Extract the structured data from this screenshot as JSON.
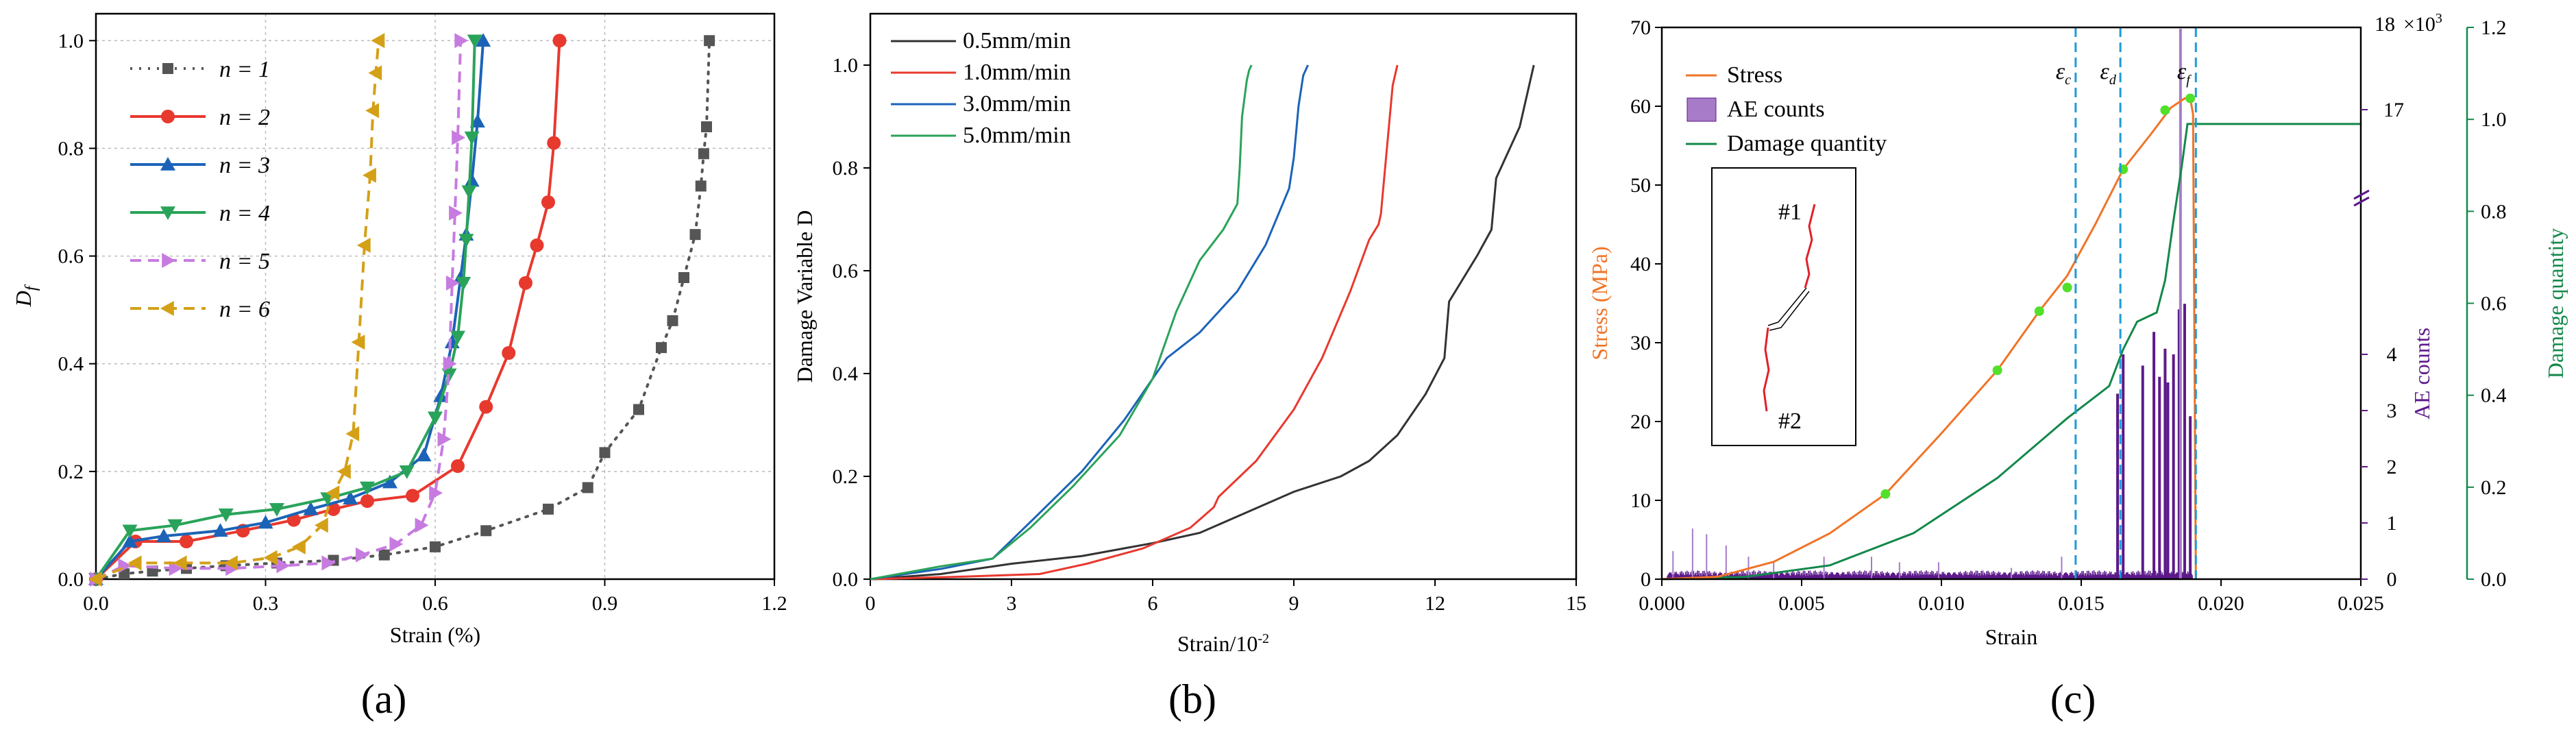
{
  "panel_labels": {
    "a": "(a)",
    "b": "(b)",
    "c": "(c)"
  },
  "chart_data": [
    {
      "id": "a",
      "type": "line",
      "xlabel": "Strain (%)",
      "ylabel": "D",
      "ylabel_sub": "f",
      "xlim": [
        0,
        1.2
      ],
      "ylim": [
        0,
        1.05
      ],
      "xticks": [
        "0.0",
        "0.3",
        "0.6",
        "0.9",
        "1.2"
      ],
      "yticks": [
        "0.0",
        "0.2",
        "0.4",
        "0.6",
        "0.8",
        "1.0"
      ],
      "grid": true,
      "legend_position": "top-left",
      "series": [
        {
          "name": "n = 1",
          "color": "#555555",
          "dash": "dot",
          "marker": "square",
          "x": [
            0.0,
            0.05,
            0.1,
            0.16,
            0.23,
            0.32,
            0.42,
            0.51,
            0.6,
            0.69,
            0.8,
            0.87,
            0.9,
            0.96,
            1.0,
            1.02,
            1.04,
            1.06,
            1.07,
            1.075,
            1.08,
            1.085
          ],
          "y": [
            0.0,
            0.01,
            0.015,
            0.02,
            0.025,
            0.03,
            0.035,
            0.045,
            0.06,
            0.09,
            0.13,
            0.17,
            0.235,
            0.315,
            0.43,
            0.48,
            0.56,
            0.64,
            0.73,
            0.79,
            0.84,
            1.0
          ]
        },
        {
          "name": "n = 2",
          "color": "#e8392f",
          "dash": "solid",
          "marker": "circle",
          "x": [
            0.0,
            0.07,
            0.16,
            0.26,
            0.35,
            0.42,
            0.48,
            0.56,
            0.64,
            0.69,
            0.73,
            0.76,
            0.78,
            0.8,
            0.81,
            0.82
          ],
          "y": [
            0.0,
            0.07,
            0.07,
            0.09,
            0.11,
            0.13,
            0.145,
            0.155,
            0.21,
            0.32,
            0.42,
            0.55,
            0.62,
            0.7,
            0.81,
            1.0
          ]
        },
        {
          "name": "n = 3",
          "color": "#1c63b8",
          "dash": "solid",
          "marker": "triangle-up",
          "x": [
            0.0,
            0.06,
            0.12,
            0.22,
            0.3,
            0.38,
            0.45,
            0.52,
            0.58,
            0.61,
            0.63,
            0.645,
            0.655,
            0.665,
            0.675,
            0.685
          ],
          "y": [
            0.0,
            0.07,
            0.08,
            0.09,
            0.105,
            0.13,
            0.15,
            0.18,
            0.23,
            0.34,
            0.44,
            0.56,
            0.64,
            0.74,
            0.85,
            1.0
          ]
        },
        {
          "name": "n = 4",
          "color": "#2aa35a",
          "dash": "solid",
          "marker": "triangle-down",
          "x": [
            0.0,
            0.06,
            0.14,
            0.23,
            0.32,
            0.41,
            0.48,
            0.55,
            0.6,
            0.625,
            0.64,
            0.65,
            0.655,
            0.66,
            0.665,
            0.67
          ],
          "y": [
            0.0,
            0.09,
            0.1,
            0.12,
            0.13,
            0.15,
            0.17,
            0.2,
            0.3,
            0.38,
            0.45,
            0.55,
            0.63,
            0.72,
            0.82,
            1.0
          ]
        },
        {
          "name": "n = 5",
          "color": "#c77be0",
          "dash": "dash",
          "marker": "triangle-right",
          "x": [
            0.0,
            0.05,
            0.14,
            0.24,
            0.33,
            0.41,
            0.47,
            0.53,
            0.575,
            0.6,
            0.615,
            0.625,
            0.63,
            0.635,
            0.64,
            0.645
          ],
          "y": [
            0.0,
            0.025,
            0.02,
            0.02,
            0.025,
            0.03,
            0.045,
            0.065,
            0.1,
            0.16,
            0.26,
            0.4,
            0.55,
            0.68,
            0.82,
            1.0
          ]
        },
        {
          "name": "n = 6",
          "color": "#d4a017",
          "dash": "dash",
          "marker": "triangle-left",
          "x": [
            0.0,
            0.07,
            0.15,
            0.24,
            0.31,
            0.36,
            0.4,
            0.42,
            0.44,
            0.455,
            0.465,
            0.475,
            0.485,
            0.49,
            0.495,
            0.5
          ],
          "y": [
            0.0,
            0.03,
            0.03,
            0.03,
            0.04,
            0.06,
            0.1,
            0.16,
            0.2,
            0.27,
            0.44,
            0.62,
            0.75,
            0.87,
            0.94,
            1.0
          ]
        }
      ]
    },
    {
      "id": "b",
      "type": "line",
      "xlabel": "Strain/10",
      "xlabel_sup": "-2",
      "ylabel": "Damage Variable D",
      "xlim": [
        0,
        15
      ],
      "ylim": [
        0,
        1.1
      ],
      "xticks": [
        "0",
        "3",
        "6",
        "9",
        "12",
        "15"
      ],
      "yticks": [
        "0.0",
        "0.2",
        "0.4",
        "0.6",
        "0.8",
        "1.0"
      ],
      "grid": false,
      "legend_position": "top-left",
      "series": [
        {
          "name": "0.5mm/min",
          "color": "#333333",
          "x": [
            0,
            1.5,
            3,
            4.5,
            6,
            7,
            8,
            9,
            10,
            10.6,
            11.2,
            11.8,
            12.2,
            12.3,
            12.9,
            13.2,
            13.3,
            13.5,
            13.8,
            14.1
          ],
          "y": [
            0,
            0.01,
            0.03,
            0.045,
            0.07,
            0.09,
            0.13,
            0.17,
            0.2,
            0.23,
            0.28,
            0.36,
            0.43,
            0.54,
            0.63,
            0.68,
            0.78,
            0.82,
            0.88,
            1.0
          ]
        },
        {
          "name": "1.0mm/min",
          "color": "#e8392f",
          "x": [
            0,
            2,
            3.6,
            4.6,
            5.8,
            6.8,
            7.3,
            7.4,
            8.2,
            9.0,
            9.6,
            10.2,
            10.6,
            10.8,
            10.85,
            11.0,
            11.1,
            11.2
          ],
          "y": [
            0,
            0.005,
            0.01,
            0.03,
            0.06,
            0.1,
            0.14,
            0.16,
            0.23,
            0.33,
            0.43,
            0.56,
            0.66,
            0.69,
            0.71,
            0.86,
            0.96,
            1.0
          ]
        },
        {
          "name": "3.0mm/min",
          "color": "#1c63b8",
          "x": [
            0,
            1.5,
            2.6,
            3.5,
            4.5,
            5.4,
            6.0,
            6.3,
            7.0,
            7.8,
            8.4,
            8.9,
            9.0,
            9.1,
            9.2,
            9.3
          ],
          "y": [
            0,
            0.02,
            0.04,
            0.12,
            0.21,
            0.31,
            0.39,
            0.43,
            0.48,
            0.56,
            0.65,
            0.76,
            0.82,
            0.92,
            0.98,
            1.0
          ]
        },
        {
          "name": "5.0mm/min",
          "color": "#2aa35a",
          "x": [
            0,
            1.5,
            2.6,
            3.4,
            4.3,
            5.3,
            6.0,
            6.5,
            7.0,
            7.5,
            7.8,
            7.85,
            7.9,
            8.0,
            8.05,
            8.1
          ],
          "y": [
            0,
            0.025,
            0.04,
            0.1,
            0.18,
            0.28,
            0.39,
            0.52,
            0.62,
            0.68,
            0.73,
            0.8,
            0.9,
            0.97,
            0.99,
            1.0
          ]
        }
      ]
    },
    {
      "id": "c",
      "type": "line",
      "xlabel": "Strain",
      "ylabel_left": "Stress (MPa)",
      "ylabel_right1": "AE counts",
      "ylabel_right2": "Damage quantity",
      "xlim": [
        0,
        0.025
      ],
      "ylim_left": [
        0,
        70
      ],
      "ylim_right2": [
        0,
        1.2
      ],
      "xticks": [
        "0.000",
        "0.005",
        "0.010",
        "0.015",
        "0.020",
        "0.025"
      ],
      "yticks_left": [
        "0",
        "10",
        "20",
        "30",
        "40",
        "50",
        "60",
        "70"
      ],
      "yticks_right1": [
        "0",
        "1",
        "2",
        "3",
        "4",
        "17",
        "18"
      ],
      "right1_top_label": "×10",
      "right1_top_sup": "3",
      "yticks_right2": [
        "0.0",
        "0.2",
        "0.4",
        "0.6",
        "0.8",
        "1.0",
        "1.2"
      ],
      "colors": {
        "stress": "#f07427",
        "ae": "#5c1a8a",
        "ae_fill": "#a77bc7",
        "damage": "#13884a",
        "vline": "#1e9bd7",
        "marker": "#52e02a",
        "crack": "#e0202a",
        "right_axis1": "#5c1a8a",
        "right_axis2": "#13884a"
      },
      "legend_position": "top-left",
      "legend": [
        "Stress",
        "AE counts",
        "Damage quantity"
      ],
      "stress": {
        "x": [
          0.0,
          0.002,
          0.004,
          0.006,
          0.008,
          0.01,
          0.012,
          0.0135,
          0.0145,
          0.0155,
          0.0165,
          0.0175,
          0.0182,
          0.0187,
          0.0189,
          0.019,
          0.0191
        ],
        "y": [
          0,
          0.3,
          2.2,
          5.8,
          10.8,
          18.5,
          26.5,
          34,
          38.5,
          45,
          52,
          56.5,
          59.8,
          61,
          61,
          59,
          0
        ]
      },
      "stress_markers": {
        "x": [
          0.008,
          0.012,
          0.0135,
          0.0145,
          0.0165,
          0.018,
          0.0189
        ],
        "y": [
          10.8,
          26.5,
          34,
          37,
          52,
          59.5,
          61
        ]
      },
      "damage": {
        "x": [
          0.0,
          0.003,
          0.006,
          0.009,
          0.012,
          0.0145,
          0.016,
          0.0165,
          0.017,
          0.0177,
          0.018,
          0.0183,
          0.0186,
          0.0188,
          0.019,
          0.025
        ],
        "y": [
          0,
          0.005,
          0.03,
          0.1,
          0.22,
          0.35,
          0.42,
          0.5,
          0.56,
          0.58,
          0.65,
          0.78,
          0.9,
          0.99,
          0.99,
          0.99
        ]
      },
      "ae_spikes": {
        "x": [
          0.0004,
          0.0011,
          0.0016,
          0.0023,
          0.0031,
          0.004,
          0.0058,
          0.0075,
          0.0085,
          0.0099,
          0.0125,
          0.0143,
          0.0163,
          0.0165,
          0.0172,
          0.0176,
          0.0178,
          0.018,
          0.0181,
          0.0183,
          0.0185,
          0.0187,
          0.0189
        ],
        "y": [
          0.5,
          0.9,
          0.8,
          0.6,
          0.4,
          0.3,
          0.4,
          0.4,
          0.3,
          0.3,
          0.2,
          0.4,
          3.3,
          4.0,
          3.8,
          4.4,
          3.6,
          4.1,
          3.5,
          4.0,
          4.8,
          4.9,
          2.9
        ]
      },
      "vlines": [
        {
          "x": 0.0148,
          "label": "ε",
          "sub": "c"
        },
        {
          "x": 0.0164,
          "label": "ε",
          "sub": "d"
        },
        {
          "x": 0.0191,
          "label": "ε",
          "sub": "f"
        }
      ],
      "inset_labels": [
        "#1",
        "#2"
      ]
    }
  ]
}
